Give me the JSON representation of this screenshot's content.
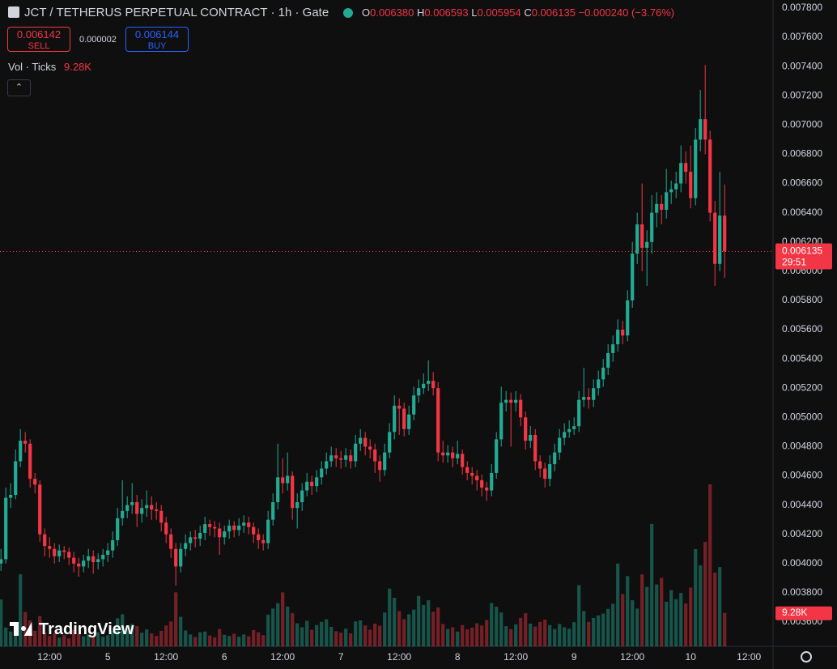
{
  "header": {
    "ohlc": {
      "labels": [
        "O",
        "H",
        "L",
        "C"
      ],
      "values": [
        "0.006380",
        "0.006593",
        "0.005954",
        "0.006135"
      ]
    },
    "change": "−0.000240 (−3.76%)",
    "trade": {
      "sell_price": "0.006142",
      "sell": "SELL",
      "spread": "0.000002",
      "buy_price": "0.006144",
      "buy": "BUY"
    },
    "indicator": {
      "name": "Vol · Ticks",
      "value": "9.28K"
    },
    "last_price": {
      "price": "0.006135",
      "countdown": "29:51"
    },
    "watermark": "TradingView"
  },
  "chart_data": {
    "type": "candlestick",
    "title": "JCT / TETHERUS PERPETUAL CONTRACT · 1h · Gate",
    "up_color": "#22ab94",
    "down_color": "#f23645",
    "grid": false,
    "ylim": [
      0.003434,
      0.007855
    ],
    "yticks": [
      {
        "value": 0.0036,
        "label": "0.003600"
      },
      {
        "value": 0.0038,
        "label": "0.003800"
      },
      {
        "value": 0.004,
        "label": "0.004000"
      },
      {
        "value": 0.0042,
        "label": "0.004200"
      },
      {
        "value": 0.0044,
        "label": "0.004400"
      },
      {
        "value": 0.0046,
        "label": "0.004600"
      },
      {
        "value": 0.0048,
        "label": "0.004800"
      },
      {
        "value": 0.005,
        "label": "0.005000"
      },
      {
        "value": 0.0052,
        "label": "0.005200"
      },
      {
        "value": 0.0054,
        "label": "0.005400"
      },
      {
        "value": 0.0056,
        "label": "0.005600"
      },
      {
        "value": 0.0058,
        "label": "0.005800"
      },
      {
        "value": 0.006,
        "label": "0.006000"
      },
      {
        "value": 0.0062,
        "label": "0.006200"
      },
      {
        "value": 0.0064,
        "label": "0.006400"
      },
      {
        "value": 0.0066,
        "label": "0.006600"
      },
      {
        "value": 0.0068,
        "label": "0.006800"
      },
      {
        "value": 0.007,
        "label": "0.007000"
      },
      {
        "value": 0.0072,
        "label": "0.007200"
      },
      {
        "value": 0.0074,
        "label": "0.007400"
      },
      {
        "value": 0.0076,
        "label": "0.007600"
      },
      {
        "value": 0.0078,
        "label": "0.007800"
      }
    ],
    "xlim": [
      -0.2,
      158.8
    ],
    "xticks": [
      {
        "value": 10,
        "label": "12:00"
      },
      {
        "value": 22,
        "label": "5"
      },
      {
        "value": 34,
        "label": "12:00"
      },
      {
        "value": 46,
        "label": "6"
      },
      {
        "value": 58,
        "label": "12:00"
      },
      {
        "value": 70,
        "label": "7"
      },
      {
        "value": 82,
        "label": "12:00"
      },
      {
        "value": 94,
        "label": "8"
      },
      {
        "value": 106,
        "label": "12:00"
      },
      {
        "value": 118,
        "label": "9"
      },
      {
        "value": 130,
        "label": "12:00"
      },
      {
        "value": 142,
        "label": "10"
      },
      {
        "value": 154,
        "label": "12:00"
      }
    ],
    "candles": [
      [
        0.004,
        0.0041,
        0.00395,
        0.00403
      ],
      [
        0.00403,
        0.00452,
        0.004,
        0.00445
      ],
      [
        0.00445,
        0.00455,
        0.00438,
        0.00447
      ],
      [
        0.00447,
        0.00478,
        0.00444,
        0.0047
      ],
      [
        0.0047,
        0.00492,
        0.00466,
        0.00484
      ],
      [
        0.00484,
        0.0049,
        0.00476,
        0.00482
      ],
      [
        0.00482,
        0.00485,
        0.00452,
        0.00458
      ],
      [
        0.00458,
        0.00462,
        0.00448,
        0.00454
      ],
      [
        0.00454,
        0.00457,
        0.00415,
        0.0042
      ],
      [
        0.0042,
        0.00424,
        0.00405,
        0.00412
      ],
      [
        0.00412,
        0.00418,
        0.00404,
        0.0041
      ],
      [
        0.0041,
        0.00414,
        0.004,
        0.00405
      ],
      [
        0.00405,
        0.00413,
        0.00401,
        0.00409
      ],
      [
        0.00409,
        0.00412,
        0.00403,
        0.00408
      ],
      [
        0.00408,
        0.00411,
        0.00399,
        0.00404
      ],
      [
        0.00404,
        0.00408,
        0.00394,
        0.004
      ],
      [
        0.004,
        0.00404,
        0.00391,
        0.00398
      ],
      [
        0.00398,
        0.00406,
        0.00394,
        0.00402
      ],
      [
        0.00402,
        0.0041,
        0.00397,
        0.00405
      ],
      [
        0.00405,
        0.00409,
        0.00393,
        0.00401
      ],
      [
        0.00401,
        0.00407,
        0.00396,
        0.00403
      ],
      [
        0.00403,
        0.0041,
        0.00398,
        0.00406
      ],
      [
        0.00406,
        0.00414,
        0.00401,
        0.00409
      ],
      [
        0.00409,
        0.00422,
        0.00404,
        0.00416
      ],
      [
        0.00416,
        0.00438,
        0.00412,
        0.00431
      ],
      [
        0.00431,
        0.00457,
        0.00426,
        0.00436
      ],
      [
        0.00436,
        0.00446,
        0.00431,
        0.0044
      ],
      [
        0.0044,
        0.00455,
        0.00434,
        0.00442
      ],
      [
        0.00442,
        0.00447,
        0.00425,
        0.00434
      ],
      [
        0.00434,
        0.00444,
        0.00428,
        0.00438
      ],
      [
        0.00438,
        0.0045,
        0.00432,
        0.0044
      ],
      [
        0.0044,
        0.00446,
        0.0043,
        0.00437
      ],
      [
        0.00437,
        0.00442,
        0.0043,
        0.00436
      ],
      [
        0.00436,
        0.0044,
        0.00422,
        0.00428
      ],
      [
        0.00428,
        0.00432,
        0.00414,
        0.0042
      ],
      [
        0.0042,
        0.00424,
        0.00404,
        0.0041
      ],
      [
        0.0041,
        0.00414,
        0.00385,
        0.00398
      ],
      [
        0.00398,
        0.00414,
        0.00394,
        0.0041
      ],
      [
        0.0041,
        0.0042,
        0.00405,
        0.00414
      ],
      [
        0.00414,
        0.00422,
        0.00409,
        0.00418
      ],
      [
        0.00418,
        0.00423,
        0.00411,
        0.00417
      ],
      [
        0.00417,
        0.00426,
        0.00412,
        0.00421
      ],
      [
        0.00421,
        0.00432,
        0.00416,
        0.00427
      ],
      [
        0.00427,
        0.0043,
        0.00419,
        0.00425
      ],
      [
        0.00425,
        0.00429,
        0.00418,
        0.00424
      ],
      [
        0.00424,
        0.00428,
        0.00406,
        0.00418
      ],
      [
        0.00418,
        0.00426,
        0.00413,
        0.00422
      ],
      [
        0.00422,
        0.0043,
        0.00417,
        0.00426
      ],
      [
        0.00426,
        0.00429,
        0.00418,
        0.00423
      ],
      [
        0.00423,
        0.00431,
        0.00419,
        0.00426
      ],
      [
        0.00426,
        0.00433,
        0.00421,
        0.00428
      ],
      [
        0.00428,
        0.00432,
        0.0042,
        0.00425
      ],
      [
        0.00425,
        0.00428,
        0.00414,
        0.0042
      ],
      [
        0.0042,
        0.00424,
        0.0041,
        0.00416
      ],
      [
        0.00416,
        0.0042,
        0.00409,
        0.00414
      ],
      [
        0.00414,
        0.00436,
        0.0041,
        0.0043
      ],
      [
        0.0043,
        0.00448,
        0.00426,
        0.00442
      ],
      [
        0.00442,
        0.00482,
        0.00437,
        0.00459
      ],
      [
        0.00459,
        0.00472,
        0.00448,
        0.00455
      ],
      [
        0.00455,
        0.00476,
        0.0045,
        0.0046
      ],
      [
        0.0046,
        0.00463,
        0.0043,
        0.00438
      ],
      [
        0.00438,
        0.00448,
        0.00424,
        0.00442
      ],
      [
        0.00442,
        0.00455,
        0.00436,
        0.0045
      ],
      [
        0.0045,
        0.00462,
        0.00446,
        0.00456
      ],
      [
        0.00456,
        0.0046,
        0.00447,
        0.00453
      ],
      [
        0.00453,
        0.00464,
        0.00449,
        0.00459
      ],
      [
        0.00459,
        0.0047,
        0.00454,
        0.00465
      ],
      [
        0.00465,
        0.00476,
        0.00461,
        0.0047
      ],
      [
        0.0047,
        0.0048,
        0.00466,
        0.00474
      ],
      [
        0.00474,
        0.00479,
        0.00466,
        0.00472
      ],
      [
        0.00472,
        0.00477,
        0.00465,
        0.00471
      ],
      [
        0.00471,
        0.00479,
        0.00466,
        0.00474
      ],
      [
        0.00474,
        0.00478,
        0.00465,
        0.0047
      ],
      [
        0.0047,
        0.00488,
        0.00466,
        0.00482
      ],
      [
        0.00482,
        0.00492,
        0.00477,
        0.00486
      ],
      [
        0.00486,
        0.0049,
        0.00474,
        0.0048
      ],
      [
        0.0048,
        0.00485,
        0.00472,
        0.00478
      ],
      [
        0.00478,
        0.00482,
        0.00462,
        0.0047
      ],
      [
        0.0047,
        0.00474,
        0.00456,
        0.00464
      ],
      [
        0.00464,
        0.00482,
        0.0046,
        0.00476
      ],
      [
        0.00476,
        0.00496,
        0.00472,
        0.0049
      ],
      [
        0.0049,
        0.00515,
        0.00485,
        0.00508
      ],
      [
        0.00508,
        0.00513,
        0.00488,
        0.00506
      ],
      [
        0.00506,
        0.0051,
        0.00487,
        0.00492
      ],
      [
        0.00492,
        0.00508,
        0.00488,
        0.00502
      ],
      [
        0.00502,
        0.00521,
        0.00498,
        0.00515
      ],
      [
        0.00515,
        0.00526,
        0.0051,
        0.0052
      ],
      [
        0.0052,
        0.0053,
        0.00516,
        0.00523
      ],
      [
        0.00523,
        0.00539,
        0.00518,
        0.00525
      ],
      [
        0.00525,
        0.00531,
        0.00515,
        0.0052
      ],
      [
        0.0052,
        0.00524,
        0.0047,
        0.00476
      ],
      [
        0.00476,
        0.00484,
        0.00469,
        0.00474
      ],
      [
        0.00474,
        0.00481,
        0.00469,
        0.00476
      ],
      [
        0.00476,
        0.0048,
        0.00466,
        0.00472
      ],
      [
        0.00472,
        0.00484,
        0.00468,
        0.00475
      ],
      [
        0.00475,
        0.00478,
        0.00461,
        0.00466
      ],
      [
        0.00466,
        0.0047,
        0.00457,
        0.00462
      ],
      [
        0.00462,
        0.00466,
        0.00454,
        0.0046
      ],
      [
        0.0046,
        0.00464,
        0.0045,
        0.00457
      ],
      [
        0.00457,
        0.00461,
        0.00446,
        0.00452
      ],
      [
        0.00452,
        0.00456,
        0.00443,
        0.0045
      ],
      [
        0.0045,
        0.00468,
        0.00446,
        0.00462
      ],
      [
        0.00462,
        0.0049,
        0.00458,
        0.00485
      ],
      [
        0.00485,
        0.00521,
        0.0048,
        0.0051
      ],
      [
        0.0051,
        0.00518,
        0.00504,
        0.00512
      ],
      [
        0.00512,
        0.00517,
        0.0048,
        0.0051
      ],
      [
        0.0051,
        0.00518,
        0.00504,
        0.00512
      ],
      [
        0.00512,
        0.00516,
        0.00494,
        0.005
      ],
      [
        0.005,
        0.00504,
        0.00478,
        0.00484
      ],
      [
        0.00484,
        0.00494,
        0.00479,
        0.00488
      ],
      [
        0.00488,
        0.00492,
        0.00464,
        0.0047
      ],
      [
        0.0047,
        0.00474,
        0.00459,
        0.00465
      ],
      [
        0.00465,
        0.00469,
        0.00452,
        0.00458
      ],
      [
        0.00458,
        0.00474,
        0.00453,
        0.00468
      ],
      [
        0.00468,
        0.00482,
        0.00463,
        0.00476
      ],
      [
        0.00476,
        0.00492,
        0.00471,
        0.00486
      ],
      [
        0.00486,
        0.00496,
        0.00481,
        0.0049
      ],
      [
        0.0049,
        0.00498,
        0.00486,
        0.00492
      ],
      [
        0.00492,
        0.005,
        0.00488,
        0.00494
      ],
      [
        0.00494,
        0.00518,
        0.0049,
        0.00512
      ],
      [
        0.00512,
        0.00534,
        0.00507,
        0.00514
      ],
      [
        0.00514,
        0.0052,
        0.00506,
        0.00512
      ],
      [
        0.00512,
        0.00526,
        0.00507,
        0.0052
      ],
      [
        0.0052,
        0.00532,
        0.00515,
        0.00526
      ],
      [
        0.00526,
        0.0054,
        0.00521,
        0.00534
      ],
      [
        0.00534,
        0.0055,
        0.00529,
        0.00544
      ],
      [
        0.00544,
        0.00556,
        0.00538,
        0.0055
      ],
      [
        0.0055,
        0.00567,
        0.00545,
        0.0056
      ],
      [
        0.0056,
        0.00566,
        0.0055,
        0.00556
      ],
      [
        0.00556,
        0.00587,
        0.00552,
        0.0058
      ],
      [
        0.0058,
        0.0062,
        0.00575,
        0.00612
      ],
      [
        0.00612,
        0.0064,
        0.00605,
        0.00632
      ],
      [
        0.00632,
        0.0066,
        0.006,
        0.00616
      ],
      [
        0.00616,
        0.00628,
        0.0059,
        0.0062
      ],
      [
        0.0062,
        0.00652,
        0.00612,
        0.0064
      ],
      [
        0.0064,
        0.00654,
        0.0063,
        0.00646
      ],
      [
        0.00646,
        0.00652,
        0.00632,
        0.00642
      ],
      [
        0.00642,
        0.0067,
        0.00636,
        0.00654
      ],
      [
        0.00654,
        0.00662,
        0.00646,
        0.00656
      ],
      [
        0.00656,
        0.00668,
        0.0065,
        0.0066
      ],
      [
        0.0066,
        0.00686,
        0.00654,
        0.00674
      ],
      [
        0.00674,
        0.00682,
        0.0066,
        0.00668
      ],
      [
        0.00668,
        0.00686,
        0.00643,
        0.0065
      ],
      [
        0.0065,
        0.00698,
        0.00645,
        0.0069
      ],
      [
        0.0069,
        0.00724,
        0.00682,
        0.00704
      ],
      [
        0.00704,
        0.00741,
        0.0068,
        0.0069
      ],
      [
        0.0069,
        0.00696,
        0.00634,
        0.0064
      ],
      [
        0.0064,
        0.00648,
        0.0059,
        0.00605
      ],
      [
        0.00605,
        0.00668,
        0.006,
        0.00638
      ],
      [
        0.00638,
        0.006593,
        0.005954,
        0.006135
      ]
    ],
    "volume": {
      "last_label": "9.28K",
      "values": [
        13000,
        5200,
        4100,
        6800,
        20000,
        9500,
        7200,
        4300,
        8400,
        3800,
        2900,
        3600,
        2400,
        3100,
        2200,
        4600,
        3500,
        2800,
        3300,
        2600,
        3900,
        2700,
        3100,
        4200,
        7800,
        8900,
        5100,
        6200,
        5600,
        3800,
        4700,
        3600,
        2900,
        4300,
        5800,
        6900,
        15000,
        8200,
        4400,
        3300,
        2600,
        3900,
        4100,
        3000,
        2500,
        4800,
        3200,
        2900,
        3500,
        2700,
        3300,
        2800,
        4500,
        3900,
        3100,
        8800,
        10500,
        12000,
        15000,
        11000,
        9200,
        6400,
        5300,
        7100,
        4600,
        5900,
        6800,
        7500,
        5400,
        4200,
        3800,
        4900,
        3600,
        6900,
        7200,
        5800,
        4600,
        6300,
        5700,
        9400,
        16000,
        13500,
        9800,
        7600,
        8900,
        10200,
        14000,
        11500,
        12800,
        9600,
        10800,
        6200,
        4800,
        5300,
        4100,
        5900,
        4700,
        5200,
        6400,
        5800,
        7300,
        12000,
        11000,
        9400,
        5600,
        4800,
        6100,
        7900,
        9200,
        6300,
        5500,
        6800,
        7400,
        5900,
        4800,
        6200,
        5300,
        4900,
        6700,
        17000,
        9800,
        6800,
        7900,
        8600,
        9100,
        10400,
        11800,
        23000,
        14500,
        19500,
        12800,
        10500,
        20000,
        16500,
        34000,
        17200,
        19000,
        12400,
        15600,
        13100,
        14800,
        11900,
        16300,
        27000,
        22500,
        29000,
        45000,
        20500,
        22000,
        9280
      ]
    }
  }
}
